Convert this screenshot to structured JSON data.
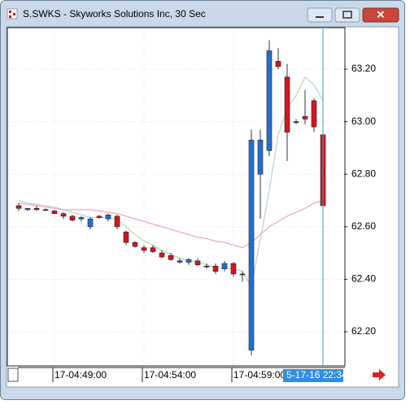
{
  "window": {
    "title": "S.SWKS - Skyworks Solutions Inc, 30 Sec"
  },
  "chart_data": {
    "type": "candlestick",
    "categories": [
      null,
      null,
      null,
      null,
      "17-04:49:00",
      null,
      null,
      null,
      null,
      null,
      null,
      null,
      null,
      null,
      "17-04:54:00",
      null,
      null,
      null,
      null,
      null,
      null,
      null,
      null,
      null,
      "17-04:59:00",
      null,
      null,
      null,
      null,
      null,
      null,
      null,
      null,
      null,
      null
    ],
    "open": [
      62.68,
      62.665,
      62.67,
      62.665,
      62.66,
      62.65,
      62.64,
      62.63,
      62.6,
      62.64,
      62.63,
      62.64,
      62.58,
      62.54,
      62.52,
      62.52,
      62.5,
      62.49,
      62.47,
      62.465,
      62.47,
      62.45,
      62.45,
      62.44,
      62.46,
      62.42,
      62.13,
      62.8,
      62.89,
      63.23,
      63.17,
      63.0,
      63.02,
      63.08,
      62.95
    ],
    "high": [
      62.69,
      62.67,
      62.68,
      62.67,
      62.665,
      62.655,
      62.645,
      62.64,
      62.635,
      62.645,
      62.65,
      62.645,
      62.585,
      62.545,
      62.53,
      62.53,
      62.51,
      62.5,
      62.48,
      62.48,
      62.48,
      62.46,
      62.46,
      62.47,
      62.465,
      62.43,
      62.97,
      62.97,
      63.31,
      63.28,
      63.22,
      63.01,
      63.12,
      63.09,
      62.97
    ],
    "low": [
      62.66,
      62.66,
      62.66,
      62.66,
      62.65,
      62.63,
      62.62,
      62.62,
      62.59,
      62.63,
      62.62,
      62.59,
      62.53,
      62.52,
      62.5,
      62.5,
      62.48,
      62.47,
      62.46,
      62.455,
      62.45,
      62.44,
      62.42,
      62.43,
      62.41,
      62.39,
      62.11,
      62.63,
      62.87,
      63.2,
      62.85,
      62.99,
      62.99,
      62.96,
      62.65
    ],
    "close": [
      62.67,
      62.67,
      62.665,
      62.665,
      62.65,
      62.64,
      62.625,
      62.635,
      62.63,
      62.635,
      62.645,
      62.6,
      62.54,
      62.525,
      62.51,
      62.505,
      62.485,
      62.475,
      62.465,
      62.475,
      62.455,
      62.45,
      62.43,
      62.46,
      62.42,
      62.42,
      62.93,
      62.93,
      63.27,
      63.21,
      62.96,
      63.0,
      63.01,
      62.98,
      62.68
    ],
    "up_color": "#1f6fd6",
    "down_color": "#d8141b",
    "series": [
      {
        "color": "#b9d8bf",
        "values": [
          62.7,
          62.69,
          62.685,
          62.68,
          62.675,
          62.665,
          62.655,
          62.645,
          62.635,
          62.635,
          62.635,
          62.625,
          62.6,
          62.57,
          62.545,
          62.53,
          62.51,
          62.495,
          62.48,
          62.47,
          62.465,
          62.455,
          62.445,
          62.44,
          62.44,
          62.43,
          62.37,
          62.55,
          62.74,
          62.95,
          63.05,
          63.1,
          63.17,
          63.14,
          63.08
        ]
      },
      {
        "color": "#f3a6c9",
        "values": [
          62.69,
          62.685,
          62.68,
          62.675,
          62.67,
          62.665,
          62.665,
          62.665,
          62.665,
          62.66,
          62.655,
          62.65,
          62.64,
          62.63,
          62.62,
          62.61,
          62.6,
          62.59,
          62.58,
          62.57,
          62.56,
          62.555,
          62.545,
          62.54,
          62.53,
          62.52,
          62.54,
          62.57,
          62.6,
          62.62,
          62.64,
          62.655,
          62.67,
          62.69,
          62.7
        ]
      }
    ],
    "ylim": [
      62.07,
      63.355
    ],
    "yticks": [
      {
        "value": 62.2,
        "label": "62.20"
      },
      {
        "value": 62.4,
        "label": "62.40"
      },
      {
        "value": 62.6,
        "label": "62.60"
      },
      {
        "value": 62.8,
        "label": "62.80"
      },
      {
        "value": 63.0,
        "label": "63.00"
      },
      {
        "value": 63.2,
        "label": "63.20"
      }
    ],
    "grid": true,
    "crosshair_label": "5-17-16 22:34:00"
  }
}
